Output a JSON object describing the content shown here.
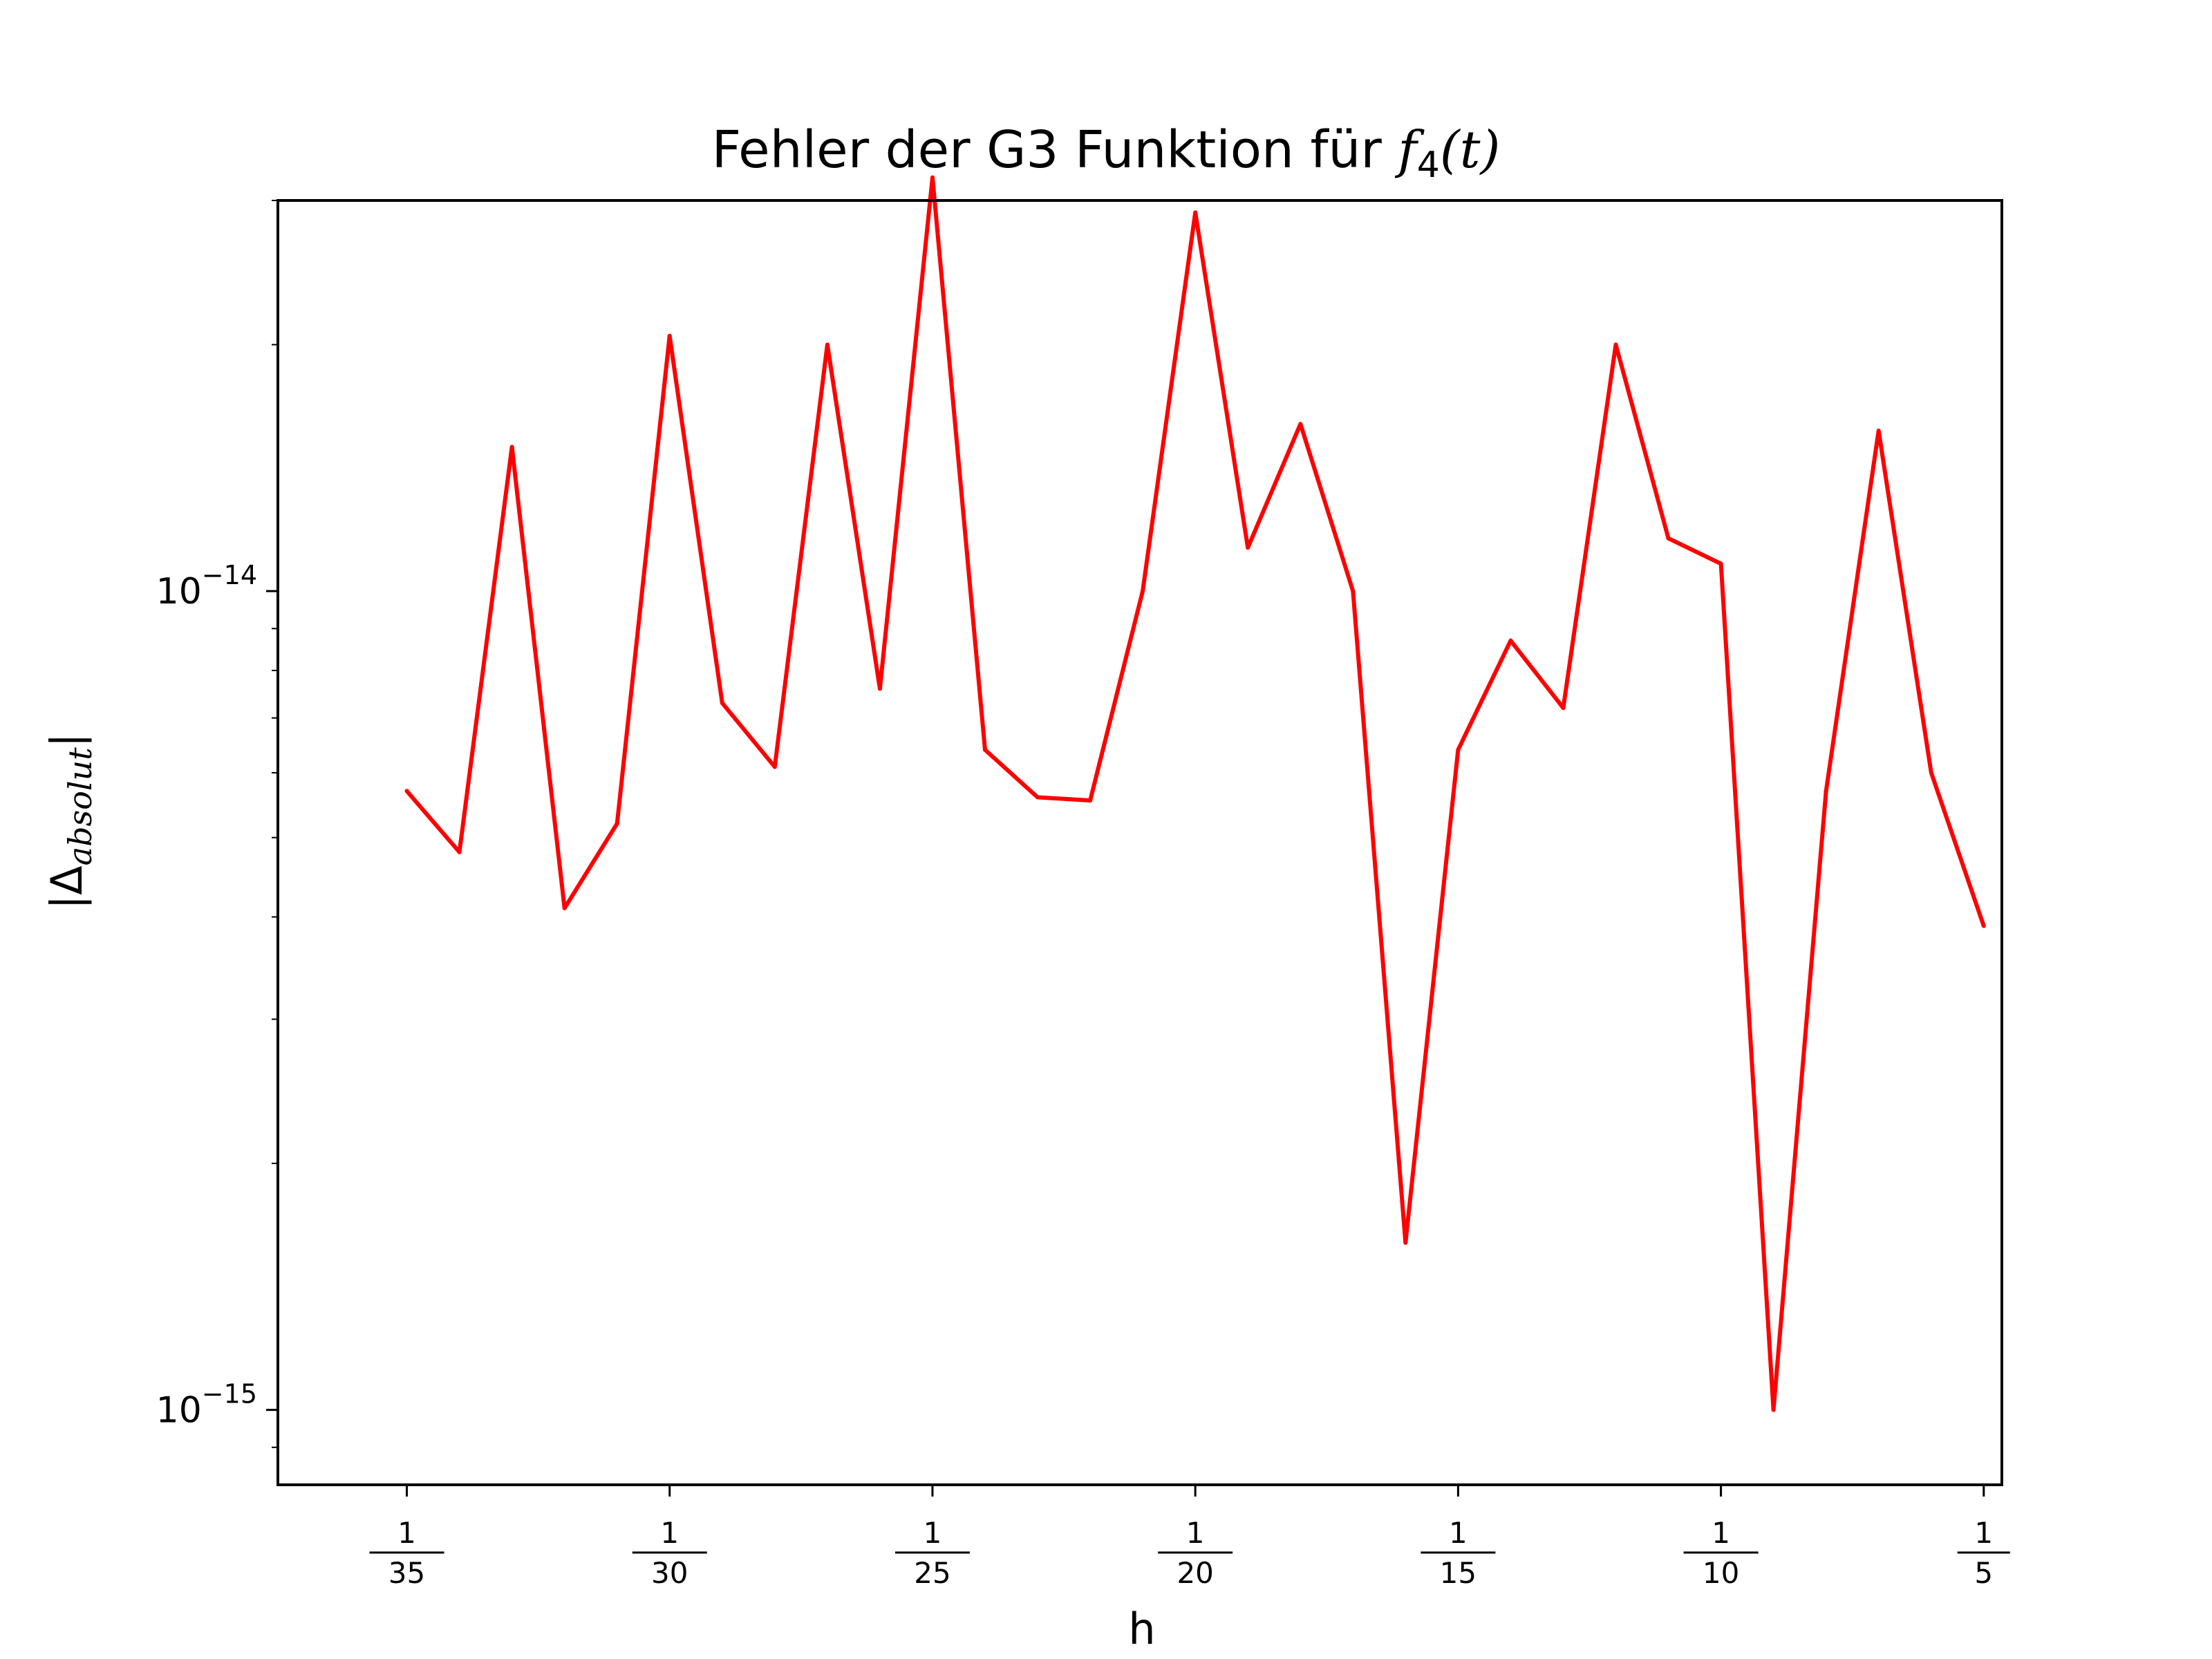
{
  "chart_data": {
    "type": "line",
    "title_text": "Fehler der G3 Funktion für ",
    "title_math_main": "f",
    "title_math_sub": "4",
    "title_math_arg": "(t)",
    "xlabel": "h",
    "ylabel_prefix": "|Δ",
    "ylabel_sub": "absolut",
    "ylabel_suffix": "|",
    "xscale": "reciprocal",
    "yscale": "log",
    "xlim": [
      0.0267,
      0.2148
    ],
    "ylim": [
      8.1e-16,
      3e-14
    ],
    "grid": false,
    "line_color": "#ff0000",
    "x_ticks": [
      {
        "value": 0.028571,
        "num": "1",
        "den": "35"
      },
      {
        "value": 0.033333,
        "num": "1",
        "den": "30"
      },
      {
        "value": 0.04,
        "num": "1",
        "den": "25"
      },
      {
        "value": 0.05,
        "num": "1",
        "den": "20"
      },
      {
        "value": 0.066667,
        "num": "1",
        "den": "15"
      },
      {
        "value": 0.1,
        "num": "1",
        "den": "10"
      },
      {
        "value": 0.2,
        "num": "1",
        "den": "5"
      }
    ],
    "y_ticks": [
      {
        "value": 1e-15,
        "base": "10",
        "exp": "−15"
      },
      {
        "value": 1e-14,
        "base": "10",
        "exp": "−14"
      }
    ],
    "series": [
      {
        "x": [
          0.028571,
          0.029412,
          0.030303,
          0.03125,
          0.032258,
          0.033333,
          0.034483,
          0.035714,
          0.037037,
          0.038462,
          0.04,
          0.041667,
          0.043478,
          0.045455,
          0.047619,
          0.05,
          0.052632,
          0.055556,
          0.058824,
          0.0625,
          0.066667,
          0.071429,
          0.076923,
          0.083333,
          0.090909,
          0.1,
          0.111111,
          0.125,
          0.142857,
          0.166667,
          0.2
        ],
        "y": [
          5.7e-15,
          4.8e-15,
          1.5e-14,
          4.1e-15,
          5.2e-15,
          2.05e-14,
          7.3e-15,
          6.1e-15,
          2e-14,
          7.6e-15,
          3.2e-14,
          6.4e-15,
          5.6e-15,
          5.55e-15,
          1e-14,
          2.9e-14,
          1.13e-14,
          1.6e-14,
          1e-14,
          1.6e-15,
          6.4e-15,
          8.7e-15,
          7.2e-15,
          2e-14,
          1.16e-14,
          1.08e-14,
          1e-15,
          5.7e-15,
          1.57e-14,
          6e-15,
          3.9e-15
        ]
      }
    ]
  }
}
